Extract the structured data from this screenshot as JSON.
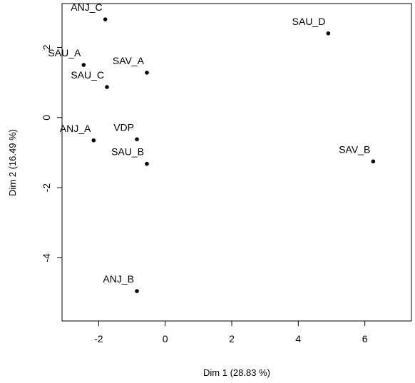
{
  "chart_data": {
    "type": "scatter",
    "title": "",
    "xlabel": "Dim 1 (28.83 %)",
    "ylabel": "Dim 2 (16.49 %)",
    "xlim": [
      -3.1,
      7.4
    ],
    "ylim": [
      -5.8,
      3.25
    ],
    "x_ticks": [
      -2,
      0,
      2,
      4,
      6
    ],
    "y_ticks": [
      -4,
      -2,
      0,
      2
    ],
    "x_tick_labels": [
      "-2",
      "0",
      "2",
      "4",
      "6"
    ],
    "y_tick_labels": [
      "-4",
      "-2",
      "0",
      "2"
    ],
    "grid": false,
    "legend": false,
    "marker_color": "#000000",
    "points": [
      {
        "label": "ANJ_C",
        "x": -1.8,
        "y": 2.8
      },
      {
        "label": "SAU_D",
        "x": 4.9,
        "y": 2.4
      },
      {
        "label": "SAU_A",
        "x": -2.45,
        "y": 1.5
      },
      {
        "label": "SAV_A",
        "x": -0.55,
        "y": 1.28
      },
      {
        "label": "SAU_C",
        "x": -1.75,
        "y": 0.87
      },
      {
        "label": "ANJ_A",
        "x": -2.15,
        "y": -0.65
      },
      {
        "label": "VDP",
        "x": -0.85,
        "y": -0.62
      },
      {
        "label": "SAU_B",
        "x": -0.55,
        "y": -1.32
      },
      {
        "label": "SAV_B",
        "x": 6.25,
        "y": -1.25
      },
      {
        "label": "ANJ_B",
        "x": -0.85,
        "y": -4.95
      }
    ]
  }
}
